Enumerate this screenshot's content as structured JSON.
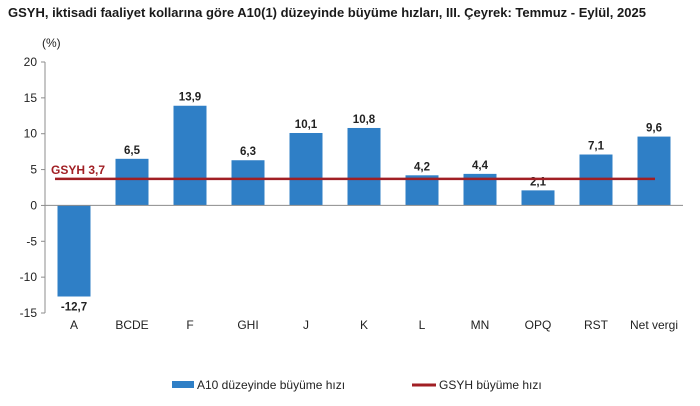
{
  "chart_data": {
    "type": "bar",
    "title": "GSYH, iktisadi faaliyet kollarına göre A10(1) düzeyinde büyüme hızları, III. Çeyrek: Temmuz - Eylül, 2025",
    "ylabel": "(%)",
    "ylim": [
      -15,
      20
    ],
    "yticks": [
      -15,
      -10,
      -5,
      0,
      5,
      10,
      15,
      20
    ],
    "grid": false,
    "legend_position": "bottom",
    "categories": [
      "A",
      "BCDE",
      "F",
      "GHI",
      "J",
      "K",
      "L",
      "MN",
      "OPQ",
      "RST",
      "Net vergi"
    ],
    "series": [
      {
        "name": "A10 düzeyinde büyüme hızı",
        "values": [
          -12.7,
          6.5,
          13.9,
          6.3,
          10.1,
          10.8,
          4.2,
          4.4,
          2.1,
          7.1,
          9.6
        ],
        "labels": [
          "-12,7",
          "6,5",
          "13,9",
          "6,3",
          "10,1",
          "10,8",
          "4,2",
          "4,4",
          "2,1",
          "7,1",
          "9,6"
        ],
        "color": "#2f7fc6"
      }
    ],
    "reference_line": {
      "name": "GSYH büyüme hızı",
      "value": 3.7,
      "label": "GSYH 3,7",
      "color": "#a11f24"
    }
  }
}
